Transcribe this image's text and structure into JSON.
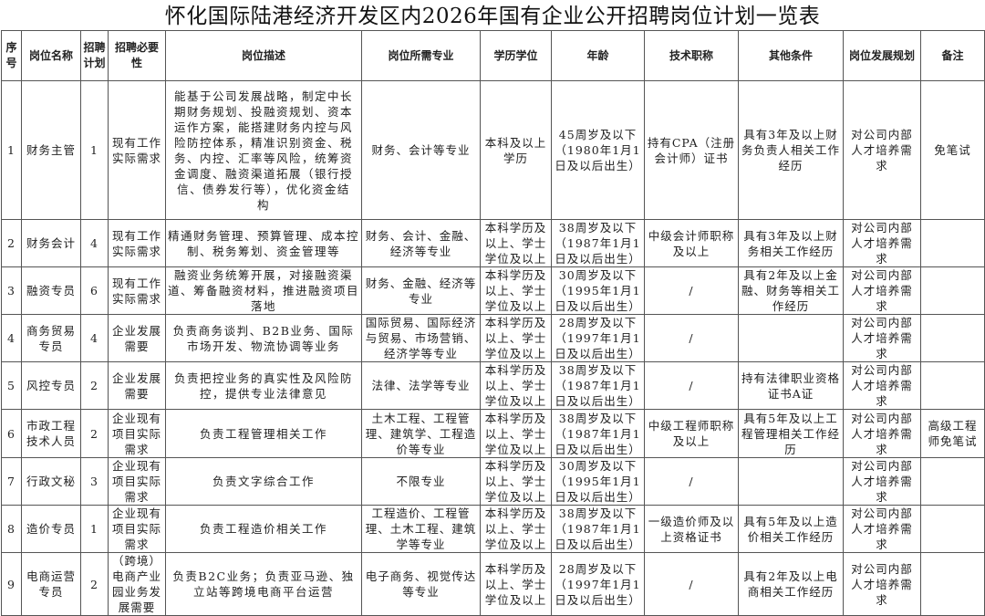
{
  "title": "怀化国际陆港经济开发区内2026年国有企业公开招聘岗位计划一览表",
  "headers": [
    "序号",
    "岗位名称",
    "招聘计划",
    "招聘必要性",
    "岗位描述",
    "岗位所需专业",
    "学历学位",
    "年龄",
    "技术职称",
    "其他条件",
    "岗位发展规划",
    "备注"
  ],
  "rows": [
    [
      "1",
      "财务主管",
      "1",
      "现有工作实际需求",
      "能基于公司发展战略，制定中长期财务规划、投融资规划、资本运作方案，能搭建财务内控与风险防控体系，精准识别资金、税务、内控、汇率等风险，统筹资金调度、融资渠道拓展（银行授信、债券发行等），优化资金结构",
      "财务、会计等专业",
      "本科及以上学历",
      "45周岁及以下（1980年1月1日及以后出生）",
      "持有CPA（注册会计师）证书",
      "具有3年及以上财务负责人相关工作经历",
      "对公司内部人才培养需求",
      "免笔试"
    ],
    [
      "2",
      "财务会计",
      "4",
      "现有工作实际需求",
      "精通财务管理、预算管理、成本控制、税务筹划、资金管理等",
      "财务、会计、金融、经济等专业",
      "本科学历及以上、学士学位及以上",
      "38周岁及以下（1987年1月1日及以后出生）",
      "中级会计师职称及以上",
      "具有3年及以上财务相关工作经历",
      "对公司内部人才培养需求",
      ""
    ],
    [
      "3",
      "融资专员",
      "6",
      "现有工作实际需求",
      "融资业务统筹开展，对接融资渠道、筹备融资材料，推进融资项目落地",
      "财务、金融、经济等专业",
      "本科学历及以上、学士学位及以上",
      "30周岁及以下（1995年1月1日及以后出生）",
      "/",
      "具有2年及以上金融、财务等相关工作经历",
      "对公司内部人才培养需求",
      ""
    ],
    [
      "4",
      "商务贸易专员",
      "4",
      "企业发展需要",
      "负责商务谈判、B2B业务、国际市场开发、物流协调等业务",
      "国际贸易、国际经济与贸易、市场营销、经济学等专业",
      "本科学历及以上、学士学位及以上",
      "28周岁及以下（1997年1月1日及以后出生）",
      "/",
      "",
      "对公司内部人才培养需求",
      ""
    ],
    [
      "5",
      "风控专员",
      "2",
      "企业发展需要",
      "负责把控业务的真实性及风险防控，提供专业法律意见",
      "法律、法学等专业",
      "本科学历及以上、学士学位及以上",
      "38周岁及以下（1987年1月1日及以后出生）",
      "/",
      "持有法律职业资格证书A证",
      "对公司内部人才培养需求",
      ""
    ],
    [
      "6",
      "市政工程技术人员",
      "2",
      "企业现有项目实际需求",
      "负责工程管理相关工作",
      "土木工程、工程管理、建筑学、工程造价等专业",
      "本科学历及以上、学士学位及以上",
      "38周岁及以下（1987年1月1日及以后出生）",
      "中级工程师职称及以上",
      "具有5年及以上工程管理相关工作经历",
      "对公司内部人才培养需求",
      "高级工程师免笔试"
    ],
    [
      "7",
      "行政文秘",
      "3",
      "企业现有项目实际需求",
      "负责文字综合工作",
      "不限专业",
      "本科学历及以上、学士学位及以上",
      "30周岁及以下（1995年1月1日及以后出生）",
      "/",
      "",
      "对公司内部人才培养需求",
      ""
    ],
    [
      "8",
      "造价专员",
      "1",
      "企业现有项目实际需求",
      "负责工程造价相关工作",
      "工程造价、工程管理、土木工程、建筑学等专业",
      "本科学历及以上、学士学位及以上",
      "38周岁及以下（1987年1月1日及以后出生）",
      "一级造价师及以上资格证书",
      "具有5年及以上造价相关工作经历",
      "对公司内部人才培养需求",
      ""
    ],
    [
      "9",
      "电商运营专员",
      "2",
      "（跨境）电商产业园业务发展需要",
      "负责B2C业务；负责亚马逊、独立站等跨境电商平台运营",
      "电子商务、视觉传达等专业",
      "本科学历及以上、学士学位及以上",
      "28周岁及以下（1997年1月1日及以后出生）",
      "/",
      "具有2年及以上电商相关工作经历",
      "对公司内部人才培养需求",
      ""
    ]
  ]
}
